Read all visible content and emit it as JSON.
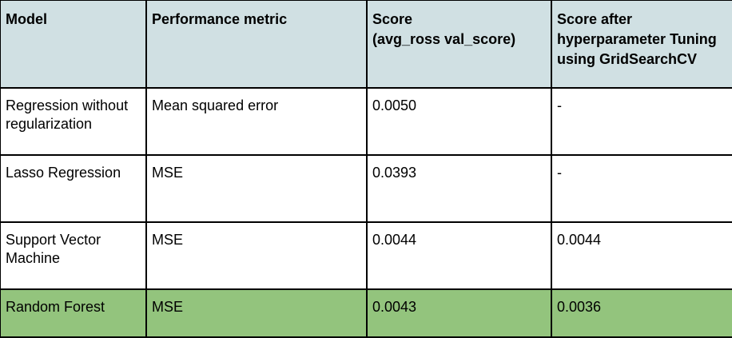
{
  "colors": {
    "header_bg": "#d0e0e3",
    "highlight_bg": "#93c47d",
    "border": "#000000"
  },
  "table": {
    "headers": [
      "Model",
      "Performance metric",
      "Score\n(avg_ross val_score)",
      "Score after hyperparameter Tuning using GridSearchCV"
    ],
    "rows": [
      [
        "Regression without regularization",
        "Mean squared error",
        "0.0050",
        "-"
      ],
      [
        "Lasso Regression",
        "MSE",
        "0.0393",
        "-"
      ],
      [
        "Support Vector Machine",
        "MSE",
        "0.0044",
        "0.0044"
      ],
      [
        "Random Forest",
        "MSE",
        "0.0043",
        "0.0036"
      ]
    ],
    "highlighted_row": 3
  }
}
